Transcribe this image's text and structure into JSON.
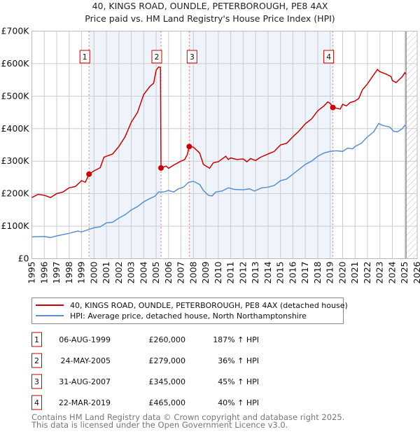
{
  "chart_data": {
    "type": "line",
    "title": "40, KINGS ROAD, OUNDLE, PETERBOROUGH, PE8 4AX",
    "subtitle": "Price paid vs. HM Land Registry's House Price Index (HPI)",
    "xlim": [
      1995,
      2026
    ],
    "ylim": [
      0,
      700000
    ],
    "y_ticks": [
      {
        "v": 0,
        "label": "£0"
      },
      {
        "v": 100000,
        "label": "£100K"
      },
      {
        "v": 200000,
        "label": "£200K"
      },
      {
        "v": 300000,
        "label": "£300K"
      },
      {
        "v": 400000,
        "label": "£400K"
      },
      {
        "v": 500000,
        "label": "£500K"
      },
      {
        "v": 600000,
        "label": "£600K"
      },
      {
        "v": 700000,
        "label": "£700K"
      }
    ],
    "x_ticks": [
      "1995",
      "1996",
      "1997",
      "1998",
      "1999",
      "2000",
      "2001",
      "2002",
      "2003",
      "2004",
      "2005",
      "2006",
      "2007",
      "2008",
      "2009",
      "2010",
      "2011",
      "2012",
      "2013",
      "2014",
      "2015",
      "2016",
      "2017",
      "2018",
      "2019",
      "2020",
      "2021",
      "2022",
      "2023",
      "2024",
      "2025",
      "2026"
    ],
    "grid": true,
    "colors": {
      "property": "#cc0000",
      "hpi": "#5b8fd4",
      "shade": "#eef3fc"
    },
    "shaded_ranges": [
      [
        1999.6,
        2005.39
      ],
      [
        2007.66,
        2019.22
      ]
    ],
    "future_hatch_from": 2025.1,
    "series": [
      {
        "name": "40, KINGS ROAD, OUNDLE, PETERBOROUGH, PE8 4AX (detached house)",
        "color": "#cc0000",
        "x": [
          1995,
          1995.5,
          1996,
          1996.5,
          1997,
          1997.5,
          1998,
          1998.5,
          1999,
          1999.3,
          1999.6,
          2000,
          2000.5,
          2000.8,
          2001.5,
          2002,
          2002.5,
          2003,
          2003.5,
          2004,
          2004.5,
          2004.8,
          2005,
          2005.2,
          2005.35,
          2005.39,
          2005.8,
          2006,
          2006.5,
          2007,
          2007.3,
          2007.5,
          2007.66,
          2008,
          2008.5,
          2008.8,
          2009.3,
          2009.6,
          2010,
          2010.6,
          2010.8,
          2011,
          2011.5,
          2012,
          2012.3,
          2012.6,
          2013,
          2013.4,
          2014,
          2014.5,
          2015,
          2015.5,
          2016,
          2016.5,
          2017,
          2017.5,
          2018,
          2018.5,
          2018.8,
          2019,
          2019.22,
          2019.5,
          2019.8,
          2020,
          2020.3,
          2020.6,
          2021,
          2021.3,
          2021.6,
          2022,
          2022.3,
          2022.8,
          2023,
          2023.5,
          2023.9,
          2024,
          2024.3,
          2024.8,
          2025,
          2025.1
        ],
        "y": [
          188,
          198,
          195,
          188,
          200,
          205,
          218,
          222,
          240,
          235,
          260,
          270,
          280,
          312,
          322,
          345,
          375,
          420,
          450,
          505,
          530,
          540,
          580,
          590,
          588,
          279,
          285,
          278,
          290,
          300,
          305,
          320,
          345,
          343,
          325,
          290,
          278,
          295,
          298,
          315,
          305,
          310,
          305,
          307,
          298,
          308,
          302,
          312,
          322,
          330,
          350,
          355,
          375,
          393,
          415,
          430,
          455,
          470,
          482,
          478,
          465,
          463,
          460,
          475,
          470,
          480,
          485,
          493,
          520,
          538,
          555,
          582,
          575,
          568,
          560,
          548,
          542,
          560,
          572,
          568
        ]
      },
      {
        "name": "HPI: Average price, detached house, North Northamptonshire",
        "color": "#5b8fd4",
        "x": [
          1995,
          1996,
          1996.5,
          1997,
          1998,
          1998.7,
          1999,
          1999.6,
          2000,
          2000.5,
          2001,
          2001.5,
          2002,
          2002.5,
          2003,
          2003.5,
          2004,
          2004.5,
          2004.9,
          2005.2,
          2005.6,
          2006,
          2006.4,
          2006.8,
          2007.2,
          2007.6,
          2008,
          2008.5,
          2008.8,
          2009.2,
          2009.5,
          2009.8,
          2010.3,
          2010.8,
          2011.3,
          2012,
          2012.5,
          2012.9,
          2013.5,
          2014,
          2014.5,
          2015,
          2015.5,
          2016,
          2016.5,
          2017,
          2017.5,
          2018,
          2018.5,
          2019,
          2019.5,
          2020,
          2020.4,
          2020.8,
          2021,
          2021.5,
          2022,
          2022.5,
          2022.9,
          2023.2,
          2023.8,
          2024.1,
          2024.4,
          2024.8,
          2025,
          2025.1
        ],
        "y": [
          67,
          68,
          65,
          70,
          78,
          85,
          82,
          90,
          95,
          98,
          110,
          112,
          125,
          135,
          150,
          160,
          175,
          185,
          192,
          205,
          205,
          210,
          205,
          215,
          220,
          235,
          238,
          228,
          210,
          195,
          193,
          205,
          208,
          218,
          213,
          212,
          215,
          208,
          218,
          220,
          225,
          240,
          245,
          260,
          275,
          290,
          300,
          315,
          325,
          330,
          332,
          330,
          340,
          338,
          345,
          355,
          375,
          390,
          416,
          410,
          405,
          392,
          390,
          400,
          410,
          408
        ]
      }
    ],
    "y_units": "£ thousands",
    "sales": [
      {
        "n": "1",
        "date": "06-AUG-1999",
        "price": "£260,000",
        "hpi": "187% ↑ HPI",
        "x": 1999.6,
        "y": 260
      },
      {
        "n": "2",
        "date": "24-MAY-2005",
        "price": "£279,000",
        "hpi": "36% ↑ HPI",
        "x": 2005.39,
        "y": 279
      },
      {
        "n": "3",
        "date": "31-AUG-2007",
        "price": "£345,000",
        "hpi": "45% ↑ HPI",
        "x": 2007.66,
        "y": 345
      },
      {
        "n": "4",
        "date": "22-MAR-2019",
        "price": "£465,000",
        "hpi": "40% ↑ HPI",
        "x": 2019.22,
        "y": 465
      }
    ]
  },
  "footer": {
    "line1": "Contains HM Land Registry data © Crown copyright and database right 2025.",
    "line2": "This data is licensed under the Open Government Licence v3.0."
  }
}
